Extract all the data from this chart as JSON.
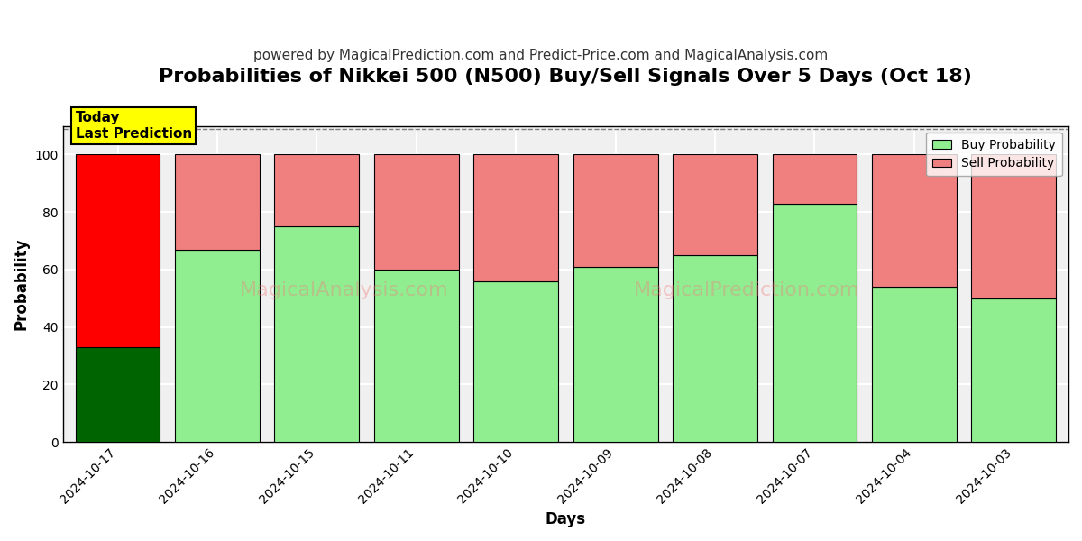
{
  "title": "Probabilities of Nikkei 500 (N500) Buy/Sell Signals Over 5 Days (Oct 18)",
  "subtitle": "powered by MagicalPrediction.com and Predict-Price.com and MagicalAnalysis.com",
  "xlabel": "Days",
  "ylabel": "Probability",
  "categories": [
    "2024-10-17",
    "2024-10-16",
    "2024-10-15",
    "2024-10-11",
    "2024-10-10",
    "2024-10-09",
    "2024-10-08",
    "2024-10-07",
    "2024-10-04",
    "2024-10-03"
  ],
  "buy_values": [
    33,
    67,
    75,
    60,
    56,
    61,
    65,
    83,
    54,
    50
  ],
  "sell_values": [
    67,
    33,
    25,
    40,
    44,
    39,
    35,
    17,
    46,
    50
  ],
  "buy_color_today": "#006400",
  "sell_color_today": "#FF0000",
  "buy_color_normal": "#90EE90",
  "sell_color_normal": "#F08080",
  "today_annotation_text": "Today\nLast Prediction",
  "today_annotation_bg": "#FFFF00",
  "today_annotation_border": "#000000",
  "legend_buy": "Buy Probability",
  "legend_sell": "Sell Probability",
  "ylim": [
    0,
    110
  ],
  "yticks": [
    0,
    20,
    40,
    60,
    80,
    100
  ],
  "dashed_line_y": 109,
  "watermark_left": "MagicalAnalysis.com",
  "watermark_right": "MagicalPrediction.com",
  "bg_color": "#ffffff",
  "plot_bg_color": "#f0f0f0",
  "grid_color": "#ffffff",
  "bar_edge_color": "#000000",
  "bar_width": 0.85,
  "figsize": [
    12,
    6
  ],
  "dpi": 100,
  "title_fontsize": 16,
  "subtitle_fontsize": 11,
  "axis_label_fontsize": 12,
  "tick_fontsize": 10
}
